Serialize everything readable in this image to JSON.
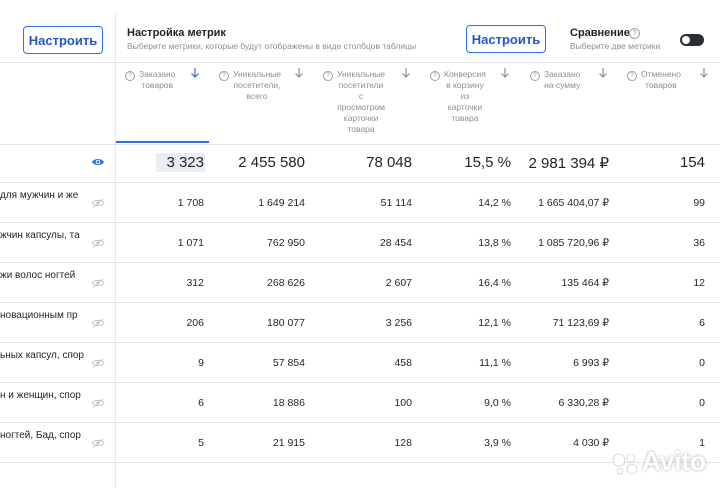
{
  "toolbar": {
    "left_button": "Настроить",
    "metrics_title": "Настройка метрик",
    "metrics_subtitle": "Выберите метрики, которые будут отображены в виде столбцов таблицы",
    "right_button": "Настроить",
    "compare_title": "Сравнение",
    "compare_subtitle": "Выберите две метрики",
    "compare_toggle_on": false
  },
  "columns": [
    {
      "label": "Заказано\nтоваров"
    },
    {
      "label": "Уникальные\nпосетители,\nвсего"
    },
    {
      "label": "Уникальные\nпосетители\nс\nпросмотром\nкарточки\nтовара"
    },
    {
      "label": "Конверсия\nв корзину\nиз\nкарточки\nтовара"
    },
    {
      "label": "Заказано\nна сумму"
    },
    {
      "label": "Отменено\nтоваров"
    }
  ],
  "totals": [
    "3 323",
    "2 455 580",
    "78 048",
    "15,5 %",
    "2 981 394 ₽",
    "154"
  ],
  "rows": [
    {
      "name": "для мужчин и же",
      "values": [
        "1 708",
        "1 649 214",
        "51 114",
        "14,2 %",
        "1 665 404,07 ₽",
        "99"
      ]
    },
    {
      "name": "жчин капсулы, та",
      "values": [
        "1 071",
        "762 950",
        "28 454",
        "13,8 %",
        "1 085 720,96 ₽",
        "36"
      ]
    },
    {
      "name": "жи волос ногтей",
      "values": [
        "312",
        "268 626",
        "2 607",
        "16,4 %",
        "135 464 ₽",
        "12"
      ]
    },
    {
      "name": "новационным пр",
      "values": [
        "206",
        "180 077",
        "3 256",
        "12,1 %",
        "71 123,69 ₽",
        "6"
      ]
    },
    {
      "name": "ьных капсул, спор",
      "values": [
        "9",
        "57 854",
        "458",
        "11,1 %",
        "6 993 ₽",
        "0"
      ]
    },
    {
      "name": "н и женщин, спор",
      "values": [
        "6",
        "18 886",
        "100",
        "9,0 %",
        "6 330,28 ₽",
        "0"
      ]
    },
    {
      "name": "ногтей, Бад, спор",
      "values": [
        "5",
        "21 915",
        "128",
        "3,9 %",
        "4 030 ₽",
        "1"
      ]
    }
  ],
  "watermark": "Avito",
  "colors": {
    "accent": "#2f6fe4",
    "border": "#e3e6ea",
    "muted": "#8a8f96"
  }
}
